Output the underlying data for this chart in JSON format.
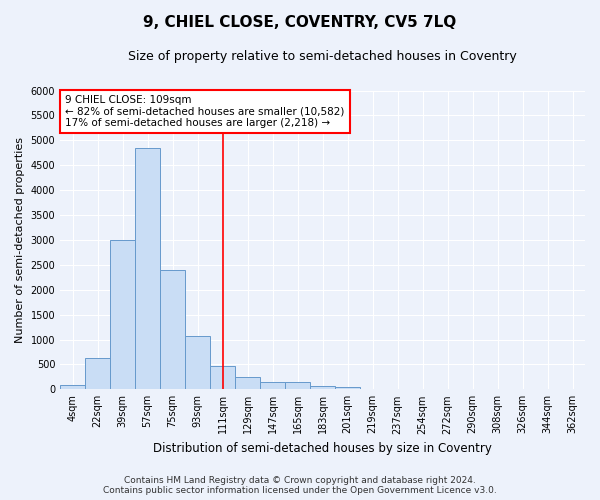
{
  "title": "9, CHIEL CLOSE, COVENTRY, CV5 7LQ",
  "subtitle": "Size of property relative to semi-detached houses in Coventry",
  "xlabel": "Distribution of semi-detached houses by size in Coventry",
  "ylabel": "Number of semi-detached properties",
  "categories": [
    "4sqm",
    "22sqm",
    "39sqm",
    "57sqm",
    "75sqm",
    "93sqm",
    "111sqm",
    "129sqm",
    "147sqm",
    "165sqm",
    "183sqm",
    "201sqm",
    "219sqm",
    "237sqm",
    "254sqm",
    "272sqm",
    "290sqm",
    "308sqm",
    "326sqm",
    "344sqm",
    "362sqm"
  ],
  "values": [
    80,
    620,
    3000,
    4850,
    2400,
    1080,
    460,
    240,
    140,
    140,
    70,
    55,
    0,
    0,
    0,
    0,
    0,
    0,
    0,
    0,
    0
  ],
  "bar_color": "#c9ddf5",
  "bar_edge_color": "#6699cc",
  "property_line_x": 6,
  "annotation_text": "9 CHIEL CLOSE: 109sqm\n← 82% of semi-detached houses are smaller (10,582)\n17% of semi-detached houses are larger (2,218) →",
  "ylim": [
    0,
    6000
  ],
  "yticks": [
    0,
    500,
    1000,
    1500,
    2000,
    2500,
    3000,
    3500,
    4000,
    4500,
    5000,
    5500,
    6000
  ],
  "footer1": "Contains HM Land Registry data © Crown copyright and database right 2024.",
  "footer2": "Contains public sector information licensed under the Open Government Licence v3.0.",
  "background_color": "#edf2fb",
  "grid_color": "#ffffff",
  "title_fontsize": 11,
  "subtitle_fontsize": 9,
  "annotation_fontsize": 7.5,
  "ylabel_fontsize": 8,
  "xlabel_fontsize": 8.5,
  "footer_fontsize": 6.5,
  "tick_fontsize": 7
}
